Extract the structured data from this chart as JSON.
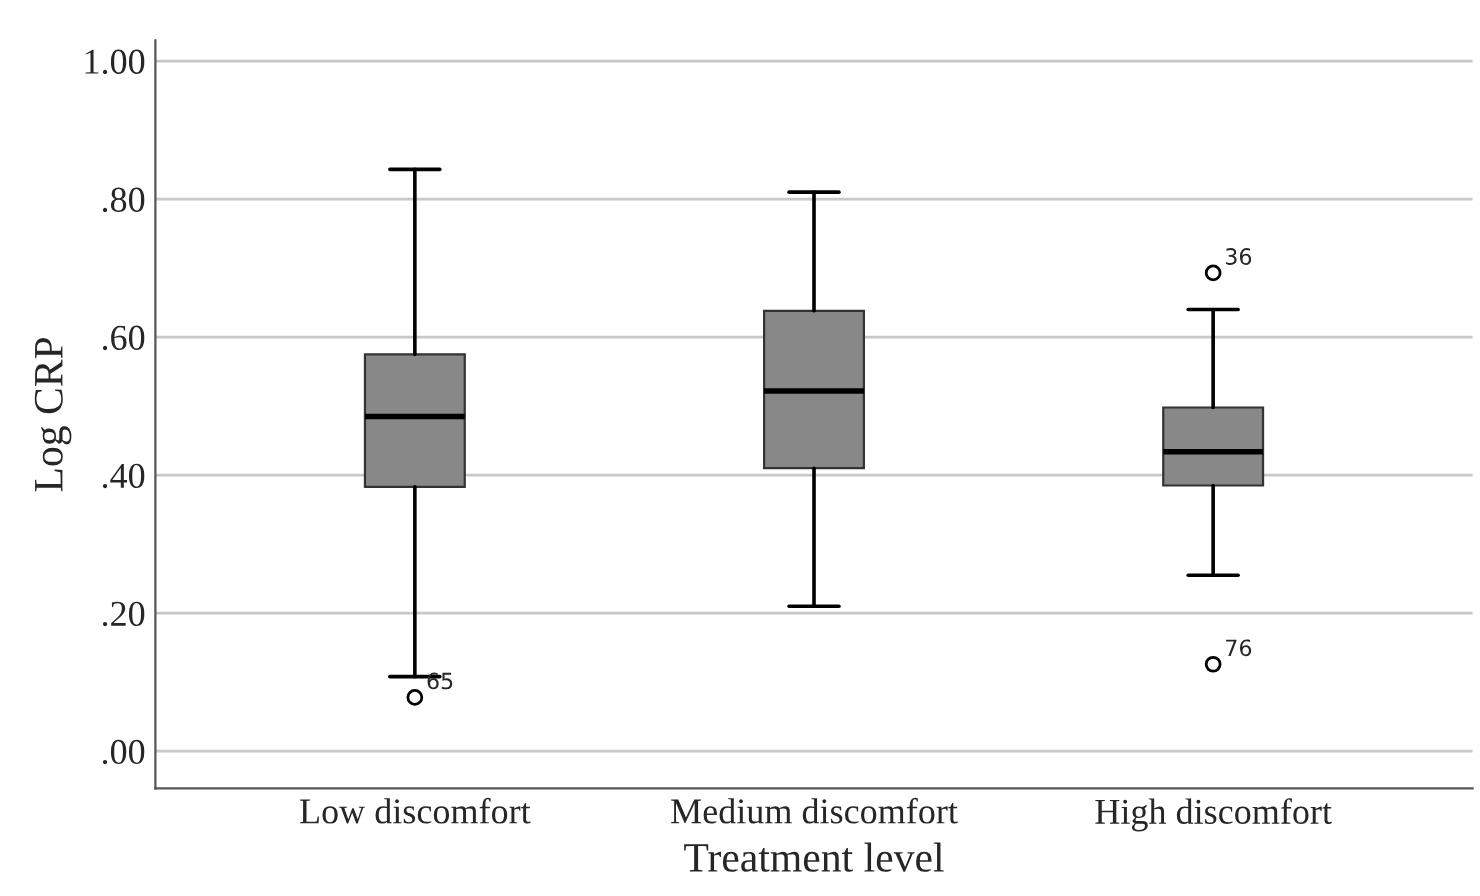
{
  "chart_data": {
    "type": "box",
    "xlabel": "Treatment level",
    "ylabel": "Log CRP",
    "categories": [
      "Low discomfort",
      "Medium discomfort",
      "High discomfort"
    ],
    "color": "#888888",
    "boxes": [
      {
        "low": 0.108,
        "q1": 0.383,
        "median": 0.485,
        "q3": 0.575,
        "high": 0.843,
        "outliers": [
          0.078
        ]
      },
      {
        "low": 0.21,
        "q1": 0.41,
        "median": 0.522,
        "q3": 0.638,
        "high": 0.81
      },
      {
        "low": 0.255,
        "q1": 0.385,
        "median": 0.434,
        "q3": 0.498,
        "high": 0.64,
        "outliers": [
          0.693,
          0.126
        ]
      }
    ],
    "ylim": [
      -0.054,
      1.03
    ],
    "yticks": [
      {
        "value": 0,
        "label": ".00"
      },
      {
        "value": 0.2,
        "label": ".20"
      },
      {
        "value": 0.4,
        "label": ".40"
      },
      {
        "value": 0.6,
        "label": ".60"
      },
      {
        "value": 0.8,
        "label": ".80"
      },
      {
        "value": 1.0,
        "label": "1.00"
      }
    ],
    "grid": "y",
    "annotations": [
      "65",
      "36",
      "76"
    ]
  }
}
